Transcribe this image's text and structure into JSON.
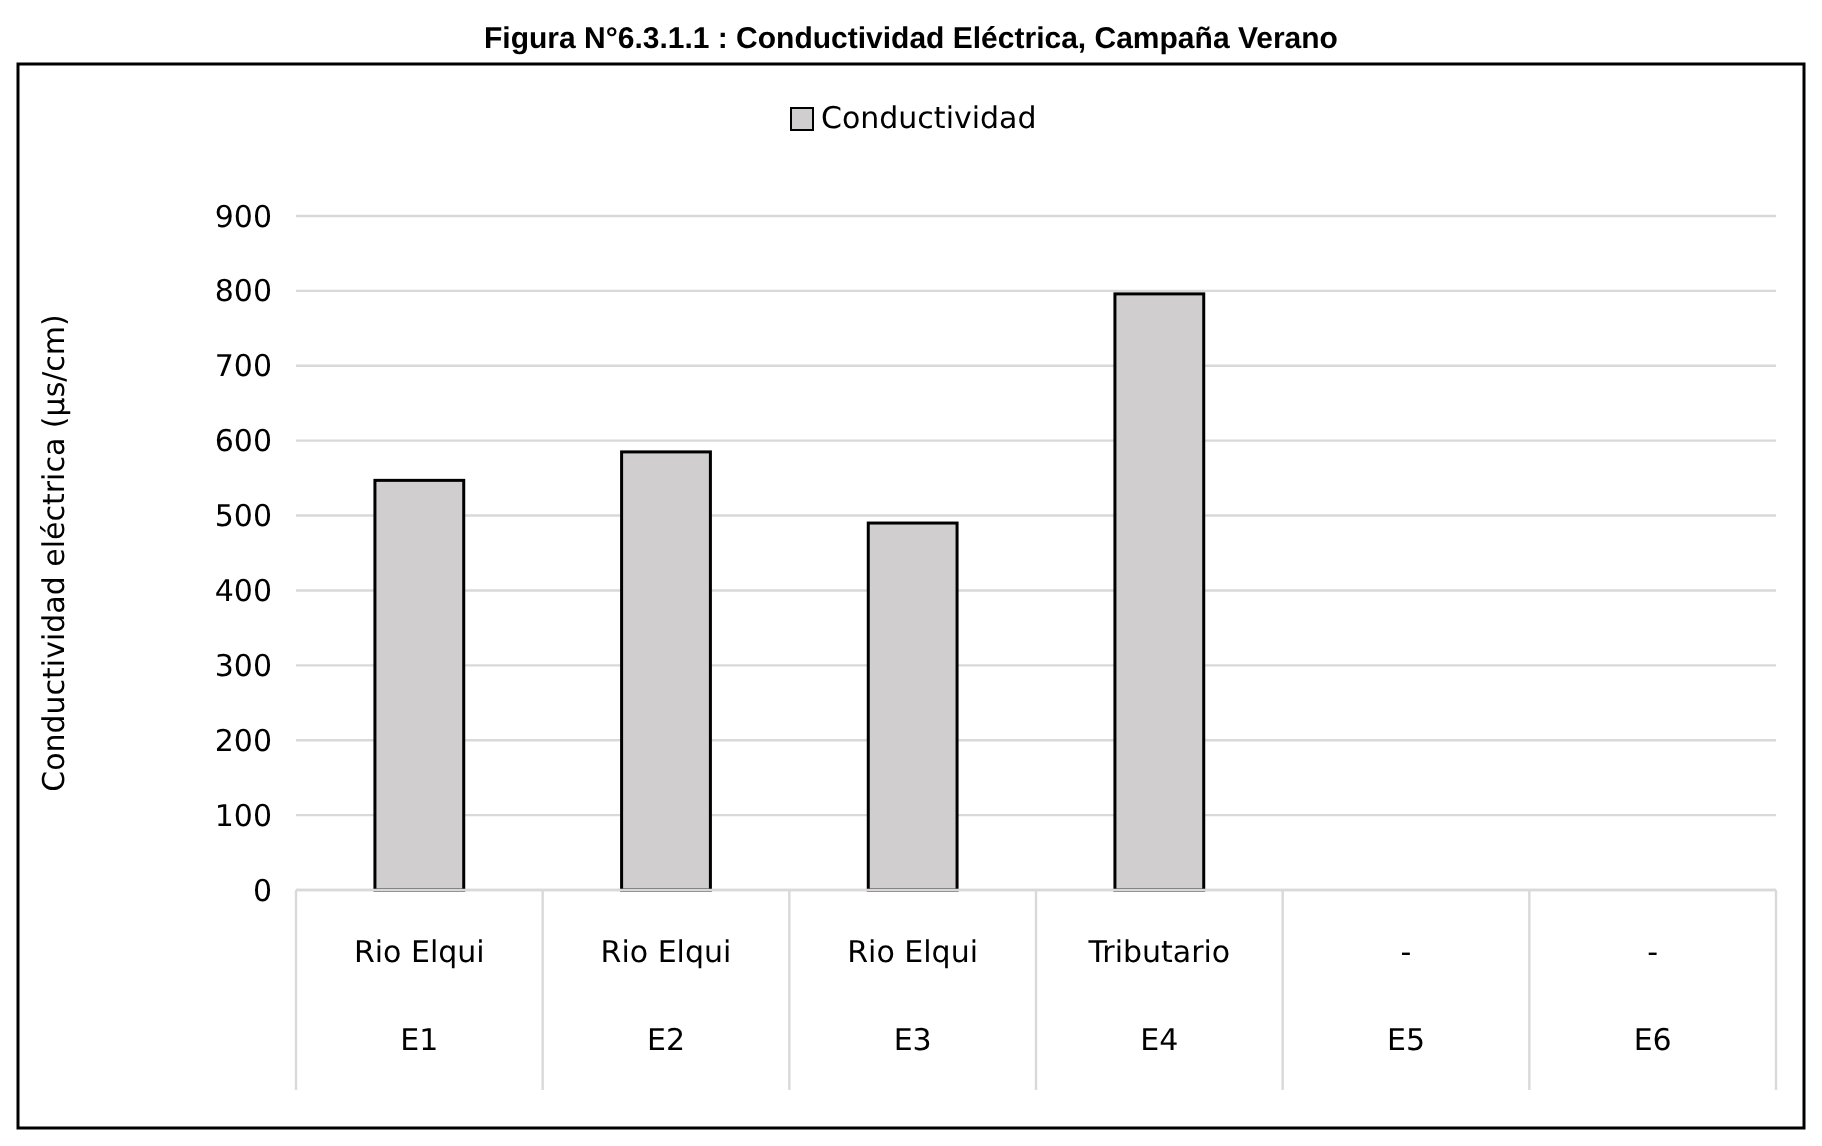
{
  "chart_data": {
    "type": "bar",
    "title": "Figura N°6.3.1.1 : Conductividad Eléctrica, Campaña Verano",
    "ylabel": "Conductividad eléctrica (µs/cm)",
    "categories": [
      "Rio Elqui\nE1",
      "Rio Elqui\nE2",
      "Rio Elqui\nE3",
      "Tributario\nE4",
      "-\nE5",
      "-\nE6"
    ],
    "series": [
      {
        "name": "Conductividad",
        "color": "#d0cece",
        "values": [
          547,
          585,
          490,
          796,
          null,
          null
        ]
      }
    ],
    "ylim": [
      0,
      900
    ],
    "yticks": [
      0,
      100,
      200,
      300,
      400,
      500,
      600,
      700,
      800,
      900
    ],
    "grid": "y",
    "legend": "top"
  }
}
